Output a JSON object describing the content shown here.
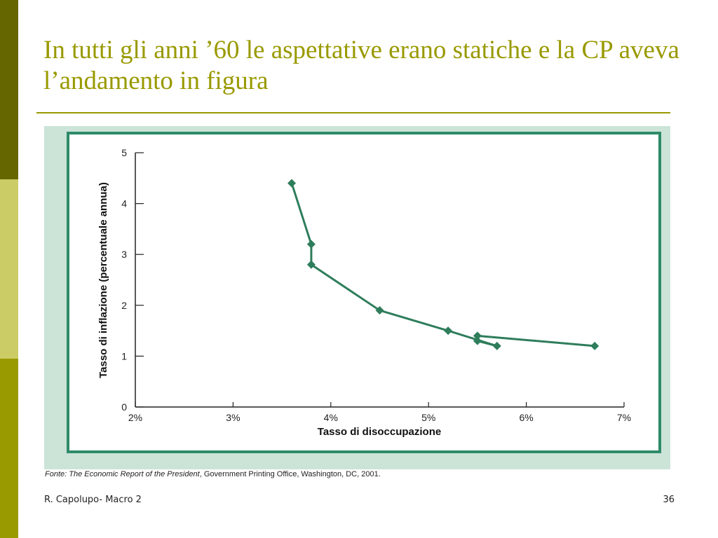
{
  "slide": {
    "title": "In tutti gli anni ’60 le aspettative erano statiche e la CP aveva l’andamento in figura",
    "footer_left": "R. Capolupo- Macro 2",
    "page_number": "36"
  },
  "source": {
    "prefix": "Fonte:",
    "publication": "The Economic Report of the President",
    "rest": ", Government Printing Office, Washington, DC, 2001."
  },
  "colors": {
    "accent": "#999900",
    "series": "#2e7d5b",
    "frame": "#2e8b68",
    "figure_background": "#cce3d8"
  },
  "chart_data": {
    "type": "line",
    "xlabel": "Tasso di disoccupazione",
    "ylabel": "Tasso di inflazione (percentuale annua)",
    "xlim": [
      2,
      7
    ],
    "ylim": [
      0,
      5
    ],
    "x_ticks": [
      2,
      3,
      4,
      5,
      6,
      7
    ],
    "x_tick_labels": [
      "2%",
      "3%",
      "4%",
      "5%",
      "6%",
      "7%"
    ],
    "y_ticks": [
      0,
      1,
      2,
      3,
      4,
      5
    ],
    "y_tick_labels": [
      "0",
      "1",
      "2",
      "3",
      "4",
      "5"
    ],
    "grid": false,
    "marker": "diamond",
    "series": [
      {
        "x": [
          6.7,
          5.5,
          5.5,
          5.7,
          5.2,
          4.5,
          3.8,
          3.8,
          3.6
        ],
        "y": [
          1.2,
          1.4,
          1.3,
          1.2,
          1.5,
          1.9,
          2.8,
          3.2,
          4.4
        ]
      }
    ]
  }
}
